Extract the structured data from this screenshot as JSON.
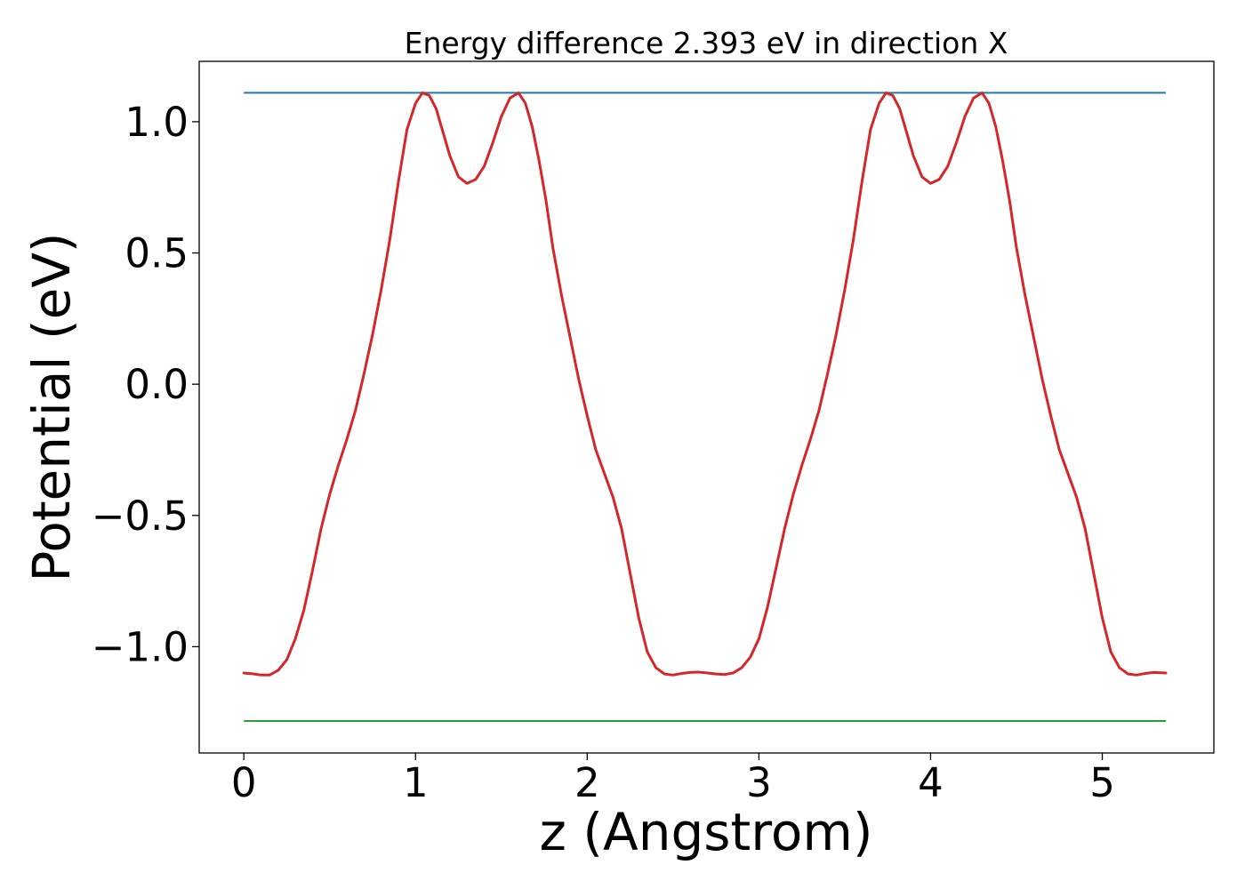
{
  "chart_data": {
    "type": "line",
    "title": "Energy difference 2.393 eV in direction X",
    "xlabel": "z (Angstrom)",
    "ylabel": "Potential (eV)",
    "xlim": [
      -0.26,
      5.65
    ],
    "ylim": [
      -1.405,
      1.23
    ],
    "xticks": [
      0,
      1,
      2,
      3,
      4,
      5
    ],
    "xtick_labels": [
      "0",
      "1",
      "2",
      "3",
      "4",
      "5"
    ],
    "yticks": [
      1.0,
      0.5,
      0.0,
      -0.5,
      -1.0
    ],
    "ytick_labels": [
      "1.0",
      "0.5",
      "0.0",
      "−0.5",
      "−1.0"
    ],
    "grid": false,
    "colors": {
      "potential": "#d62728",
      "upper_level": "#1f77b4",
      "lower_level": "#2ca02c"
    },
    "hlines": [
      {
        "y": 1.11,
        "x_range": [
          0,
          5.37
        ],
        "color": "#1f77b4"
      },
      {
        "y": -1.283,
        "x_range": [
          0,
          5.37
        ],
        "color": "#2ca02c"
      }
    ],
    "series": [
      {
        "color": "#d62728",
        "x": [
          0.0,
          0.05,
          0.1,
          0.15,
          0.2,
          0.25,
          0.3,
          0.35,
          0.4,
          0.45,
          0.5,
          0.55,
          0.6,
          0.65,
          0.7,
          0.75,
          0.8,
          0.85,
          0.9,
          0.95,
          1.0,
          1.04,
          1.08,
          1.12,
          1.16,
          1.2,
          1.25,
          1.3,
          1.35,
          1.4,
          1.45,
          1.5,
          1.55,
          1.6,
          1.64,
          1.68,
          1.72,
          1.76,
          1.8,
          1.85,
          1.9,
          1.95,
          2.0,
          2.05,
          2.1,
          2.15,
          2.2,
          2.25,
          2.3,
          2.35,
          2.4,
          2.45,
          2.5,
          2.55,
          2.6,
          2.65,
          2.7,
          2.75,
          2.8,
          2.85,
          2.9,
          2.95,
          3.0,
          3.05,
          3.1,
          3.15,
          3.2,
          3.25,
          3.3,
          3.35,
          3.4,
          3.45,
          3.5,
          3.55,
          3.6,
          3.65,
          3.7,
          3.74,
          3.78,
          3.82,
          3.86,
          3.9,
          3.95,
          4.0,
          4.05,
          4.1,
          4.15,
          4.2,
          4.25,
          4.3,
          4.34,
          4.38,
          4.42,
          4.46,
          4.5,
          4.55,
          4.6,
          4.65,
          4.7,
          4.75,
          4.8,
          4.85,
          4.9,
          4.95,
          5.0,
          5.05,
          5.1,
          5.15,
          5.2,
          5.25,
          5.3,
          5.37
        ],
        "y": [
          -1.1,
          -1.103,
          -1.108,
          -1.108,
          -1.09,
          -1.05,
          -0.97,
          -0.86,
          -0.71,
          -0.55,
          -0.42,
          -0.31,
          -0.21,
          -0.1,
          0.04,
          0.19,
          0.36,
          0.55,
          0.77,
          0.97,
          1.07,
          1.11,
          1.1,
          1.05,
          0.96,
          0.87,
          0.79,
          0.765,
          0.78,
          0.83,
          0.92,
          1.02,
          1.09,
          1.11,
          1.07,
          0.98,
          0.85,
          0.7,
          0.52,
          0.34,
          0.18,
          0.02,
          -0.12,
          -0.25,
          -0.34,
          -0.43,
          -0.55,
          -0.72,
          -0.89,
          -1.02,
          -1.08,
          -1.104,
          -1.108,
          -1.102,
          -1.098,
          -1.097,
          -1.1,
          -1.104,
          -1.106,
          -1.1,
          -1.08,
          -1.04,
          -0.97,
          -0.85,
          -0.7,
          -0.55,
          -0.42,
          -0.31,
          -0.21,
          -0.1,
          0.04,
          0.19,
          0.36,
          0.55,
          0.77,
          0.97,
          1.07,
          1.11,
          1.1,
          1.05,
          0.96,
          0.87,
          0.79,
          0.765,
          0.78,
          0.83,
          0.92,
          1.02,
          1.09,
          1.11,
          1.07,
          0.98,
          0.85,
          0.7,
          0.52,
          0.34,
          0.18,
          0.02,
          -0.12,
          -0.25,
          -0.34,
          -0.43,
          -0.55,
          -0.72,
          -0.89,
          -1.02,
          -1.08,
          -1.104,
          -1.108,
          -1.102,
          -1.098,
          -1.1
        ]
      }
    ]
  }
}
